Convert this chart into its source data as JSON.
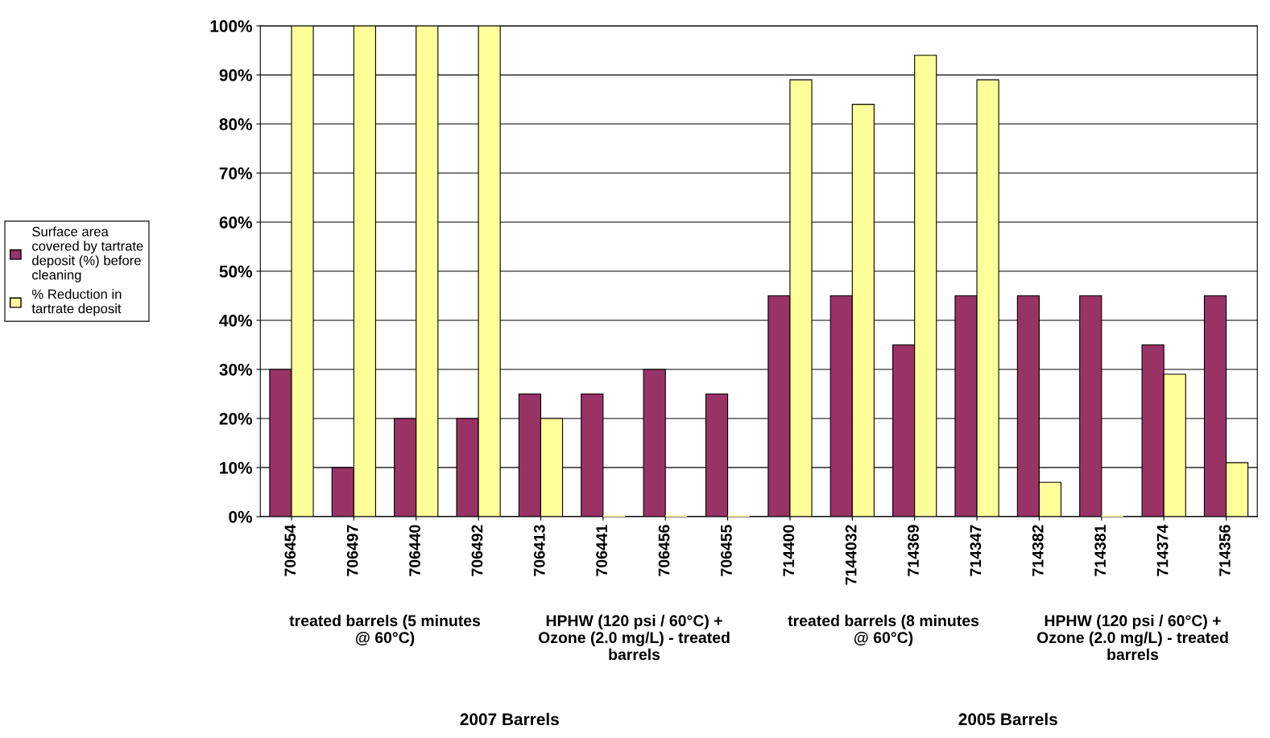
{
  "chart_data": {
    "type": "bar",
    "categories": [
      "706454",
      "706497",
      "706440",
      "706492",
      "706413",
      "706441",
      "706456",
      "706455",
      "714400",
      "7144032",
      "714369",
      "714347",
      "714382",
      "714381",
      "714374",
      "714356"
    ],
    "series": [
      {
        "name": "Surface area covered by tartrate deposit (%) before cleaning",
        "color": "#993366",
        "values": [
          30,
          10,
          20,
          20,
          25,
          25,
          30,
          25,
          45,
          45,
          35,
          45,
          45,
          45,
          35,
          45
        ]
      },
      {
        "name": "% Reduction in tartrate deposit",
        "color": "#ffff99",
        "values": [
          100,
          100,
          100,
          100,
          20,
          0,
          0,
          0,
          89,
          84,
          94,
          89,
          7,
          0,
          29,
          11
        ]
      }
    ],
    "ylim": [
      0,
      100
    ],
    "yticks": [
      {
        "value": 0,
        "label": "0%"
      },
      {
        "value": 10,
        "label": "10%"
      },
      {
        "value": 20,
        "label": "20%"
      },
      {
        "value": 30,
        "label": "30%"
      },
      {
        "value": 40,
        "label": "40%"
      },
      {
        "value": 50,
        "label": "50%"
      },
      {
        "value": 60,
        "label": "60%"
      },
      {
        "value": 70,
        "label": "70%"
      },
      {
        "value": 80,
        "label": "80%"
      },
      {
        "value": 90,
        "label": "90%"
      },
      {
        "value": 100,
        "label": "100%"
      }
    ],
    "grid": "y",
    "legend": "left",
    "annotations": [
      "treated barrels (5 minutes @ 60°C)",
      "HPHW (120 psi / 60°C) + Ozone (2.0 mg/L) - treated barrels",
      "treated barrels (8 minutes @ 60°C)",
      "HPHW (120 psi / 60°C) + Ozone (2.0 mg/L) - treated barrels",
      "2007 Barrels",
      "2005 Barrels"
    ]
  }
}
